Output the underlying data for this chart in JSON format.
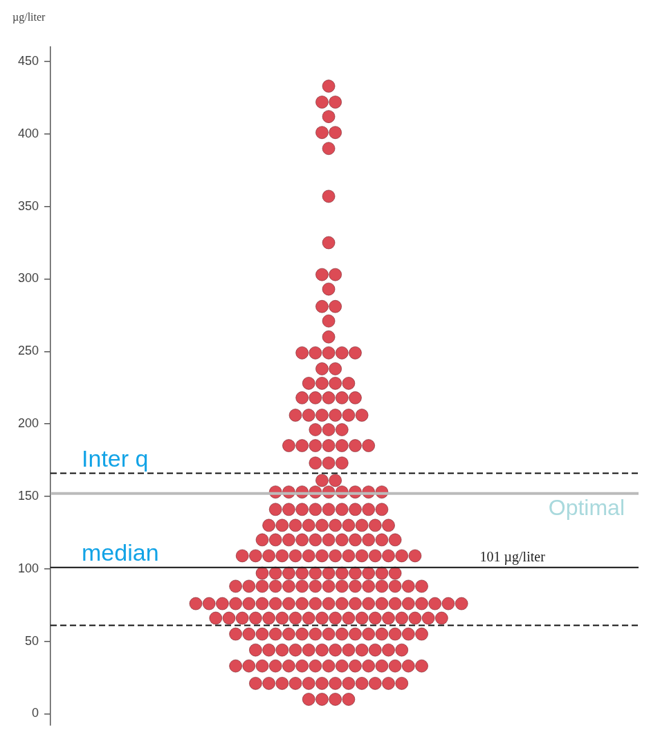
{
  "chart_data": {
    "type": "scatter",
    "ylabel": "µg/liter",
    "marker": "circle",
    "tick_labels": "y",
    "categories": [
      null
    ],
    "ylim": [
      -8,
      460
    ],
    "yticks": [
      0,
      50,
      100,
      150,
      200,
      250,
      300,
      350,
      400,
      450
    ],
    "series": [
      {
        "color": "#dc4b55",
        "x": [
          null,
          null,
          null,
          null,
          null,
          null,
          null,
          null,
          null,
          null,
          null,
          null,
          null,
          null,
          null,
          null,
          null,
          null,
          null,
          null,
          null,
          null,
          null,
          null,
          null,
          null,
          null,
          null,
          null,
          null,
          null,
          null,
          null,
          null,
          null,
          null,
          null,
          null,
          null,
          null,
          null,
          null,
          null,
          null,
          null,
          null,
          null,
          null,
          null,
          null,
          null,
          null,
          null,
          null,
          null,
          null,
          null,
          null,
          null,
          null,
          null,
          null,
          null,
          null,
          null,
          null,
          null,
          null,
          null,
          null,
          null,
          null,
          null,
          null,
          null,
          null,
          null,
          null,
          null,
          null,
          null,
          null,
          null,
          null,
          null,
          null,
          null,
          null,
          null,
          null,
          null,
          null,
          null,
          null,
          null,
          null,
          null,
          null,
          null,
          null,
          null,
          null,
          null,
          null,
          null,
          null,
          null,
          null,
          null,
          null,
          null,
          null,
          null,
          null,
          null,
          null,
          null,
          null,
          null,
          null,
          null,
          null,
          null,
          null,
          null,
          null,
          null,
          null,
          null,
          null,
          null,
          null,
          null,
          null,
          null,
          null,
          null,
          null,
          null,
          null,
          null,
          null,
          null,
          null,
          null,
          null,
          null,
          null,
          null,
          null,
          null,
          null,
          null,
          null,
          null,
          null,
          null,
          null,
          null,
          null,
          null,
          null,
          null,
          null,
          null,
          null,
          null,
          null,
          null,
          null,
          null,
          null,
          null,
          null,
          null,
          null,
          null,
          null,
          null,
          null,
          null,
          null,
          null,
          null,
          null,
          null,
          null,
          null,
          null,
          null,
          null,
          null,
          null,
          null,
          null,
          null,
          null,
          null,
          null,
          null,
          null,
          null,
          null,
          null,
          null,
          null,
          null,
          null,
          null,
          null,
          null,
          null,
          null,
          null,
          null,
          null,
          null,
          null,
          null,
          null,
          null,
          null,
          null,
          null,
          null,
          null,
          null,
          null,
          null
        ],
        "values": [
          433,
          422,
          422,
          412,
          401,
          401,
          390,
          357,
          325,
          303,
          303,
          293,
          281,
          281,
          271,
          260,
          249,
          249,
          249,
          249,
          249,
          238,
          238,
          228,
          228,
          228,
          228,
          218,
          218,
          218,
          218,
          218,
          206,
          206,
          206,
          206,
          206,
          206,
          196,
          196,
          196,
          185,
          185,
          185,
          185,
          185,
          185,
          185,
          173,
          173,
          173,
          161,
          161,
          153,
          153,
          153,
          153,
          153,
          153,
          153,
          153,
          153,
          141,
          141,
          141,
          141,
          141,
          141,
          141,
          141,
          141,
          130,
          130,
          130,
          130,
          130,
          130,
          130,
          130,
          130,
          130,
          120,
          120,
          120,
          120,
          120,
          120,
          120,
          120,
          120,
          120,
          120,
          109,
          109,
          109,
          109,
          109,
          109,
          109,
          109,
          109,
          109,
          109,
          109,
          109,
          109,
          97,
          97,
          97,
          97,
          97,
          97,
          97,
          97,
          97,
          97,
          97,
          88,
          88,
          88,
          88,
          88,
          88,
          88,
          88,
          88,
          88,
          88,
          88,
          88,
          88,
          88,
          76,
          76,
          76,
          76,
          76,
          76,
          76,
          76,
          76,
          76,
          76,
          76,
          76,
          76,
          76,
          76,
          76,
          76,
          76,
          76,
          76,
          66,
          66,
          66,
          66,
          66,
          66,
          66,
          66,
          66,
          66,
          66,
          66,
          66,
          66,
          66,
          66,
          66,
          66,
          55,
          55,
          55,
          55,
          55,
          55,
          55,
          55,
          55,
          55,
          55,
          55,
          55,
          55,
          55,
          44,
          44,
          44,
          44,
          44,
          44,
          44,
          44,
          44,
          44,
          44,
          44,
          33,
          33,
          33,
          33,
          33,
          33,
          33,
          33,
          33,
          33,
          33,
          33,
          33,
          33,
          33,
          21,
          21,
          21,
          21,
          21,
          21,
          21,
          21,
          21,
          21,
          21,
          21,
          10,
          10,
          10,
          10
        ]
      }
    ],
    "ref_lines": [
      {
        "axis": "y",
        "value": 166,
        "label": "Inter q",
        "color": "#111111",
        "line_style": "dashed"
      },
      {
        "axis": "y",
        "value": 61,
        "color": "#111111",
        "line_style": "dashed"
      },
      {
        "axis": "y",
        "value": 101,
        "label": "101 µg/liter",
        "color": "#111111",
        "line_style": "solid"
      },
      {
        "axis": "y",
        "value": 152,
        "label": "Optimal",
        "color": "#bbbbbb",
        "line_style": "solid"
      }
    ],
    "annotations": [
      {
        "text": "median",
        "y": 101
      }
    ]
  }
}
